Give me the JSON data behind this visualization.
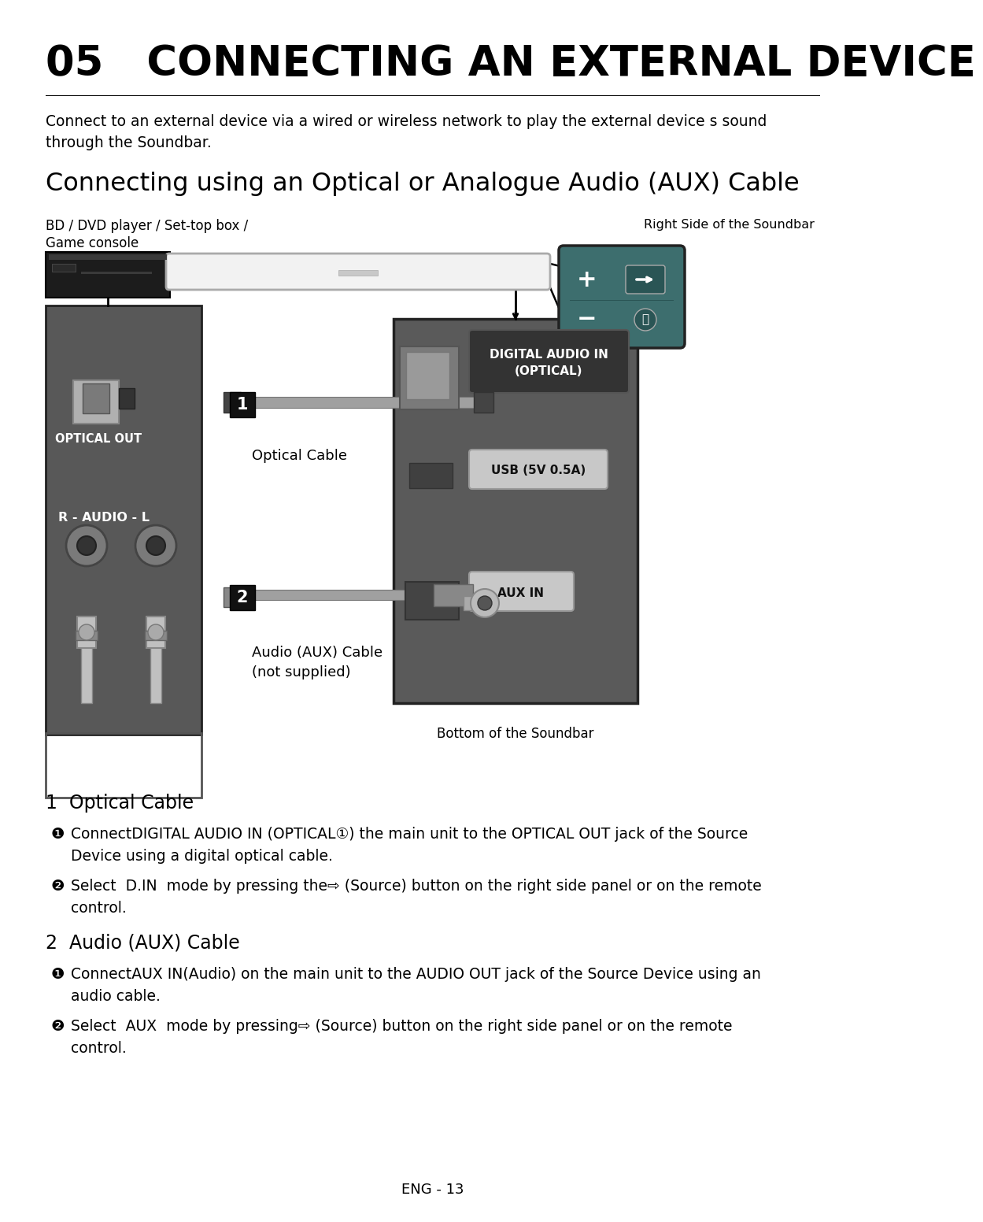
{
  "title": "05   CONNECTING AN EXTERNAL DEVICE",
  "subtitle_line1": "Connect to an external device via a wired or wireless network to play the external device s sound",
  "subtitle_line2": "through the Soundbar.",
  "section_title": "Connecting using an Optical or Analogue Audio (AUX) Cable",
  "label_bd_line1": "BD / DVD player / Set-top box /",
  "label_bd_line2": "Game console",
  "label_right_side": "Right Side of the Soundbar",
  "label_optical_out": "OPTICAL OUT",
  "label_optical_cable": "Optical Cable",
  "label_aux_cable_line1": "Audio (AUX) Cable",
  "label_aux_cable_line2": "(not supplied)",
  "label_bottom": "Bottom of the Soundbar",
  "label_digital_audio": "DIGITAL AUDIO IN\n(OPTICAL)",
  "label_usb": "USB (5V 0.5A)",
  "label_aux_in": "AUX IN",
  "label_r_audio_l": "R - AUDIO - L",
  "footer": "ENG - 13",
  "bullet1_title": "1  Optical Cable",
  "bullet2_title": "2  Audio (AUX) Cable",
  "bg_color": "#ffffff"
}
